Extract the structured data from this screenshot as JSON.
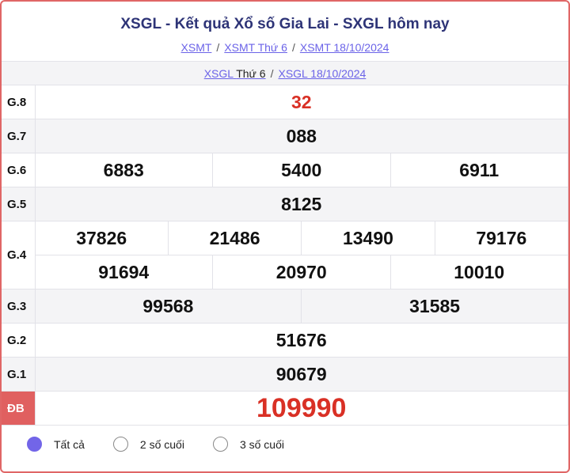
{
  "header": {
    "title": "XSGL - Kết quả Xổ số Gia Lai - SXGL hôm nay",
    "breadcrumbs": [
      "XSMT",
      "XSMT Thứ 6",
      "XSMT 18/10/2024"
    ]
  },
  "subheader": {
    "link1": "XSGL",
    "link1_suffix": "Thứ 6",
    "link2": "XSGL 18/10/2024"
  },
  "results": {
    "g8": {
      "label": "G.8",
      "values": [
        "32"
      ]
    },
    "g7": {
      "label": "G.7",
      "values": [
        "088"
      ]
    },
    "g6": {
      "label": "G.6",
      "values": [
        "6883",
        "5400",
        "6911"
      ]
    },
    "g5": {
      "label": "G.5",
      "values": [
        "8125"
      ]
    },
    "g4": {
      "label": "G.4",
      "values": [
        "37826",
        "21486",
        "13490",
        "79176",
        "91694",
        "20970",
        "10010"
      ]
    },
    "g3": {
      "label": "G.3",
      "values": [
        "99568",
        "31585"
      ]
    },
    "g2": {
      "label": "G.2",
      "values": [
        "51676"
      ]
    },
    "g1": {
      "label": "G.1",
      "values": [
        "90679"
      ]
    },
    "db": {
      "label": "ĐB",
      "values": [
        "109990"
      ]
    }
  },
  "filters": {
    "options": [
      "Tất cả",
      "2 số cuối",
      "3 số cuối"
    ],
    "selected": "Tất cả"
  },
  "colors": {
    "border": "#e06666",
    "title": "#2e3477",
    "link": "#6b63e8",
    "highlight": "#d93025",
    "radio": "#7265e8"
  }
}
